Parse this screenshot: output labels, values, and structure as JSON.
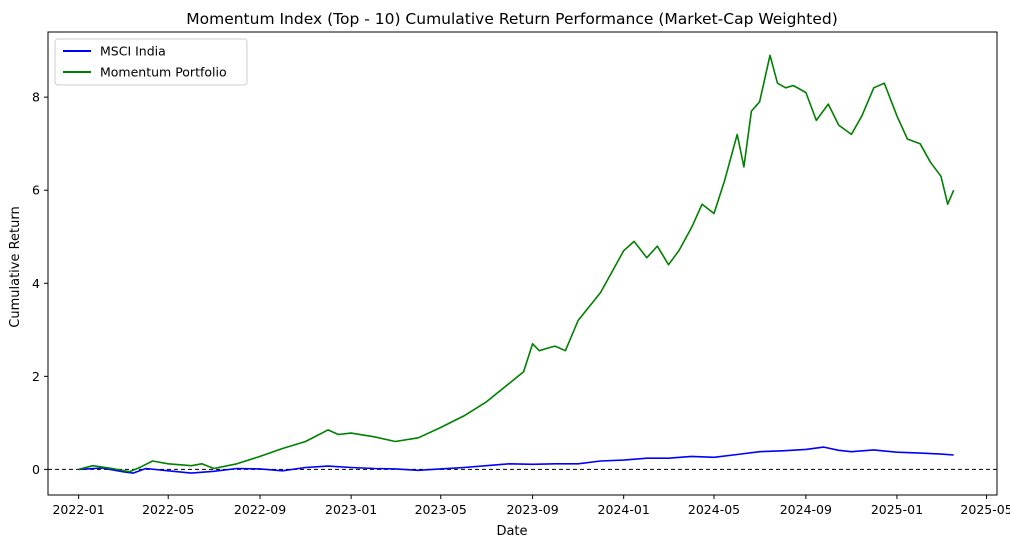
{
  "chart_data": {
    "type": "line",
    "title": "Momentum Index (Top - 10) Cumulative Return Performance (Market-Cap Weighted)",
    "xlabel": "Date",
    "ylabel": "Cumulative Return",
    "x_ticks": [
      "2022-01",
      "2022-05",
      "2022-09",
      "2023-01",
      "2023-05",
      "2023-09",
      "2024-01",
      "2024-05",
      "2024-09",
      "2025-01",
      "2025-05"
    ],
    "y_ticks": [
      "0",
      "2",
      "4",
      "6",
      "8"
    ],
    "xlim": [
      "2021-11-21",
      "2025-05-15"
    ],
    "ylim": [
      -0.55,
      9.4
    ],
    "grid": false,
    "legend_position": "top-left",
    "reference_line": {
      "y": 0,
      "style": "dashed",
      "color": "#000000"
    },
    "series": [
      {
        "name": "MSCI India",
        "color": "#0000ff",
        "x": [
          "2022-01-01",
          "2022-02-01",
          "2022-03-01",
          "2022-03-15",
          "2022-04-01",
          "2022-05-01",
          "2022-06-01",
          "2022-07-01",
          "2022-08-01",
          "2022-09-01",
          "2022-10-01",
          "2022-11-01",
          "2022-12-01",
          "2023-01-01",
          "2023-02-01",
          "2023-03-01",
          "2023-04-01",
          "2023-05-01",
          "2023-06-01",
          "2023-07-01",
          "2023-08-01",
          "2023-09-01",
          "2023-10-01",
          "2023-11-01",
          "2023-12-01",
          "2024-01-01",
          "2024-02-01",
          "2024-03-01",
          "2024-04-01",
          "2024-05-01",
          "2024-06-01",
          "2024-07-01",
          "2024-08-01",
          "2024-09-01",
          "2024-09-25",
          "2024-10-15",
          "2024-11-01",
          "2024-12-01",
          "2025-01-01",
          "2025-02-01",
          "2025-03-01",
          "2025-03-18"
        ],
        "values": [
          0,
          0.03,
          -0.05,
          -0.08,
          0.02,
          -0.03,
          -0.08,
          -0.04,
          0.02,
          0.01,
          -0.03,
          0.04,
          0.07,
          0.04,
          0.02,
          0.01,
          -0.02,
          0.01,
          0.04,
          0.08,
          0.12,
          0.11,
          0.12,
          0.12,
          0.18,
          0.2,
          0.24,
          0.24,
          0.28,
          0.26,
          0.32,
          0.38,
          0.4,
          0.43,
          0.48,
          0.41,
          0.38,
          0.42,
          0.37,
          0.35,
          0.33,
          0.31
        ]
      },
      {
        "name": "Momentum Portfolio",
        "color": "#008000",
        "x": [
          "2022-01-01",
          "2022-01-20",
          "2022-02-15",
          "2022-03-10",
          "2022-03-25",
          "2022-04-10",
          "2022-05-01",
          "2022-06-01",
          "2022-06-15",
          "2022-07-01",
          "2022-08-01",
          "2022-09-01",
          "2022-10-01",
          "2022-11-01",
          "2022-12-01",
          "2022-12-15",
          "2023-01-01",
          "2023-02-01",
          "2023-03-01",
          "2023-04-01",
          "2023-05-01",
          "2023-06-01",
          "2023-07-01",
          "2023-08-01",
          "2023-08-20",
          "2023-09-01",
          "2023-09-10",
          "2023-09-20",
          "2023-10-01",
          "2023-10-15",
          "2023-11-01",
          "2023-12-01",
          "2024-01-01",
          "2024-01-15",
          "2024-02-01",
          "2024-02-15",
          "2024-03-01",
          "2024-03-15",
          "2024-04-01",
          "2024-04-15",
          "2024-05-01",
          "2024-05-15",
          "2024-06-01",
          "2024-06-10",
          "2024-06-20",
          "2024-07-01",
          "2024-07-15",
          "2024-07-25",
          "2024-08-05",
          "2024-08-15",
          "2024-09-01",
          "2024-09-15",
          "2024-10-01",
          "2024-10-15",
          "2024-11-01",
          "2024-11-15",
          "2024-12-01",
          "2024-12-15",
          "2025-01-01",
          "2025-01-15",
          "2025-02-01",
          "2025-02-15",
          "2025-03-01",
          "2025-03-10",
          "2025-03-18"
        ],
        "values": [
          0,
          0.08,
          0.02,
          -0.05,
          0.05,
          0.18,
          0.12,
          0.08,
          0.12,
          0.02,
          0.12,
          0.28,
          0.45,
          0.6,
          0.85,
          0.75,
          0.78,
          0.7,
          0.6,
          0.68,
          0.9,
          1.15,
          1.45,
          1.85,
          2.1,
          2.7,
          2.55,
          2.6,
          2.65,
          2.55,
          3.2,
          3.8,
          4.7,
          4.9,
          4.55,
          4.8,
          4.4,
          4.7,
          5.2,
          5.7,
          5.5,
          6.2,
          7.2,
          6.5,
          7.7,
          7.9,
          8.9,
          8.3,
          8.2,
          8.25,
          8.1,
          7.5,
          7.85,
          7.4,
          7.2,
          7.6,
          8.2,
          8.3,
          7.6,
          7.1,
          7.0,
          6.6,
          6.3,
          5.7,
          6.0
        ]
      }
    ]
  }
}
